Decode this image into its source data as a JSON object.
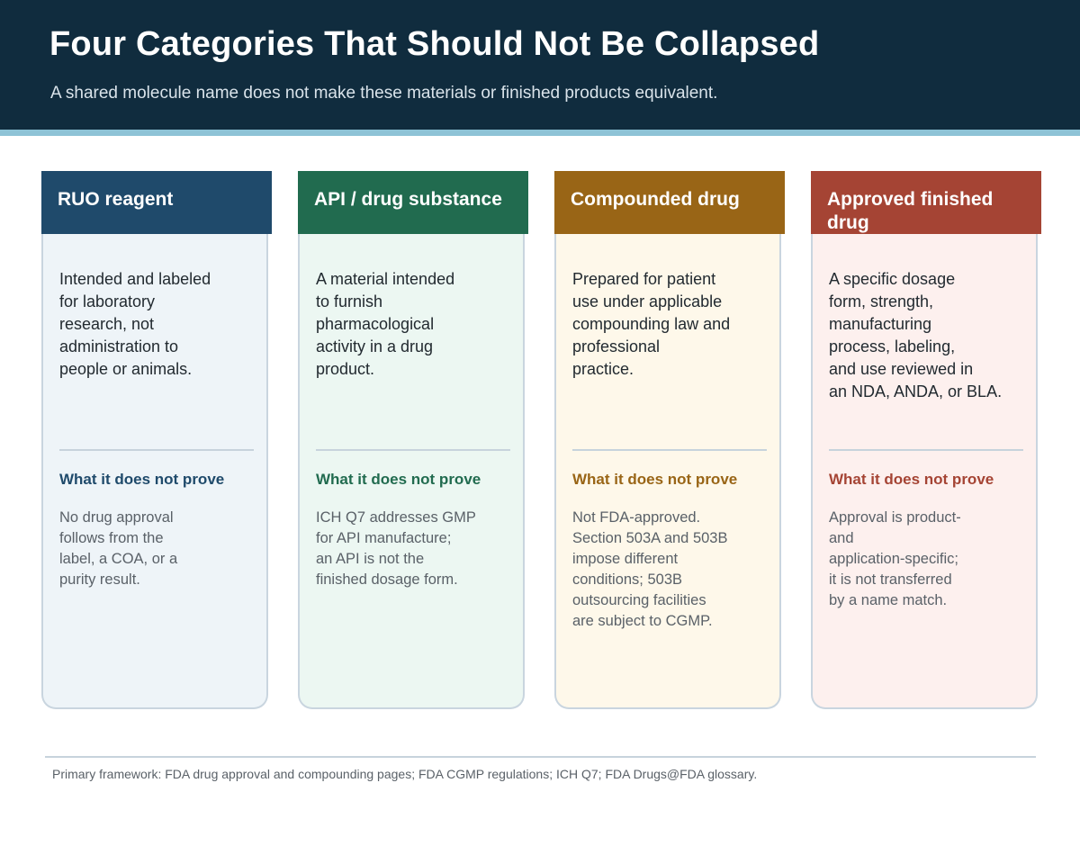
{
  "header": {
    "title": "Four Categories That Should Not Be Collapsed",
    "subtitle": "A shared molecule name does not make these materials or finished products equivalent."
  },
  "colors": {
    "header_bg": "#102c3e",
    "accent_rule": "#8ec3d6",
    "ruo": "#1f4a6b",
    "api": "#216b4f",
    "compounded": "#996516",
    "approved": "#a54434"
  },
  "cards": [
    {
      "title": "RUO reagent",
      "description": "Intended and labeled\nfor laboratory\nresearch, not\nadministration to\npeople or animals.",
      "subheading": "What it does not prove",
      "note": "No drug approval\nfollows from the\nlabel, a COA, or a\npurity result."
    },
    {
      "title": "API / drug substance",
      "description": "A material intended\nto furnish\npharmacological\nactivity in a drug\nproduct.",
      "subheading": "What it does not prove",
      "note": "ICH Q7 addresses GMP\nfor API manufacture;\nan API is not the\nfinished dosage form."
    },
    {
      "title": "Compounded drug",
      "description": "Prepared for patient\nuse under applicable\ncompounding law and\nprofessional\npractice.",
      "subheading": "What it does not prove",
      "note": "Not FDA-approved.\nSection 503A and 503B\nimpose different\nconditions; 503B\noutsourcing facilities\nare subject to CGMP."
    },
    {
      "title": "Approved finished drug",
      "description": "A specific dosage\nform, strength,\nmanufacturing\nprocess, labeling,\nand use reviewed in\nan NDA, ANDA, or BLA.",
      "subheading": "What it does not prove",
      "note": "Approval is product-\nand\napplication-specific;\nit is not transferred\nby a name match."
    }
  ],
  "footer": {
    "source": "Primary framework: FDA drug approval and compounding pages; FDA CGMP regulations; ICH Q7; FDA Drugs@FDA glossary."
  }
}
